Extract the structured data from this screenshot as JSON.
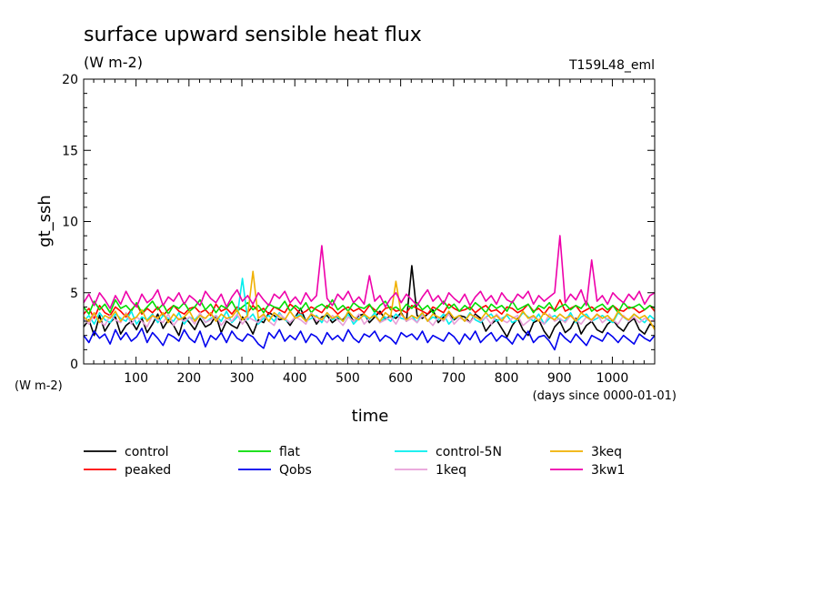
{
  "chart_data": {
    "type": "line",
    "title": "surface upward sensible heat flux",
    "units": "(W m-2)",
    "experiment": "T159L48_eml",
    "ylabel": "gt_ssh",
    "xlabel": "time",
    "x_units": "(days since 0000-01-01)",
    "ylim": [
      0,
      20
    ],
    "xlim": [
      1,
      1080
    ],
    "x_ticks": [
      100,
      200,
      300,
      400,
      500,
      600,
      700,
      800,
      900,
      1000
    ],
    "y_ticks": [
      0,
      5,
      10,
      15,
      20
    ],
    "grid": false,
    "legend_position": "below",
    "sampling": "values given every 10 days starting at day 1",
    "series": [
      {
        "name": "control",
        "color": "#000000",
        "values": [
          2.6,
          3.1,
          2.0,
          3.4,
          2.3,
          2.9,
          3.3,
          2.1,
          2.7,
          3.0,
          2.4,
          3.2,
          2.2,
          2.8,
          3.5,
          2.5,
          3.1,
          2.7,
          2.0,
          3.3,
          2.9,
          2.4,
          3.2,
          2.6,
          2.8,
          3.4,
          2.2,
          3.0,
          2.7,
          2.5,
          3.3,
          2.8,
          2.1,
          3.1,
          2.9,
          3.6,
          3.4,
          3.1,
          3.2,
          2.7,
          3.3,
          3.9,
          3.0,
          3.5,
          2.8,
          3.3,
          3.4,
          2.9,
          3.2,
          3.1,
          3.6,
          3.0,
          3.4,
          3.5,
          2.9,
          3.3,
          3.7,
          3.1,
          3.4,
          3.2,
          3.6,
          3.0,
          6.9,
          3.4,
          3.2,
          3.5,
          3.8,
          2.9,
          3.3,
          3.6,
          3.1,
          3.4,
          3.3,
          2.9,
          3.5,
          3.2,
          2.3,
          2.8,
          3.1,
          2.5,
          1.9,
          2.7,
          3.2,
          2.4,
          2.0,
          2.9,
          3.1,
          2.3,
          1.8,
          2.6,
          3.0,
          2.2,
          2.5,
          3.2,
          2.1,
          2.7,
          3.0,
          2.4,
          2.2,
          2.8,
          3.1,
          2.6,
          2.3,
          2.9,
          3.2,
          2.4,
          2.1,
          2.8,
          2.6
        ]
      },
      {
        "name": "peaked",
        "color": "#ff0000",
        "values": [
          3.5,
          3.9,
          3.2,
          4.1,
          3.6,
          3.4,
          4.0,
          3.7,
          3.3,
          3.8,
          4.2,
          3.5,
          3.9,
          3.6,
          4.0,
          3.4,
          3.8,
          4.1,
          3.7,
          3.5,
          3.9,
          4.0,
          3.6,
          3.8,
          3.4,
          4.2,
          3.7,
          3.9,
          3.5,
          4.0,
          3.8,
          3.6,
          4.1,
          3.7,
          3.9,
          3.5,
          4.0,
          3.8,
          3.6,
          4.2,
          3.9,
          3.5,
          3.7,
          4.0,
          3.8,
          3.6,
          4.1,
          3.9,
          3.5,
          3.8,
          4.0,
          3.7,
          3.9,
          3.6,
          4.1,
          3.8,
          3.5,
          3.9,
          4.0,
          3.7,
          3.8,
          3.6,
          4.1,
          3.9,
          3.7,
          3.5,
          4.0,
          3.8,
          3.6,
          4.2,
          3.9,
          3.7,
          3.8,
          4.0,
          3.6,
          3.9,
          4.1,
          3.7,
          3.8,
          3.5,
          4.0,
          3.9,
          3.6,
          3.8,
          4.2,
          3.7,
          3.9,
          3.5,
          4.0,
          3.8,
          4.5,
          3.7,
          3.9,
          4.1,
          3.6,
          3.8,
          4.0,
          3.7,
          3.9,
          3.6,
          4.1,
          3.8,
          3.7,
          4.0,
          3.9,
          3.6,
          3.8,
          4.1,
          3.7
        ]
      },
      {
        "name": "flat",
        "color": "#00dd00",
        "values": [
          4.0,
          3.5,
          4.4,
          3.8,
          4.2,
          3.6,
          4.5,
          3.9,
          4.1,
          3.7,
          4.3,
          3.6,
          4.0,
          4.4,
          3.8,
          4.2,
          3.5,
          4.1,
          3.9,
          4.3,
          3.7,
          4.0,
          4.5,
          3.8,
          4.2,
          3.6,
          4.1,
          3.9,
          4.4,
          3.7,
          4.0,
          4.3,
          3.8,
          4.1,
          3.6,
          4.2,
          4.0,
          3.9,
          4.4,
          3.7,
          4.1,
          3.8,
          4.3,
          3.6,
          4.0,
          4.2,
          3.9,
          4.5,
          3.8,
          4.1,
          3.7,
          4.3,
          4.0,
          3.9,
          4.2,
          3.6,
          4.1,
          4.4,
          3.8,
          4.0,
          3.7,
          4.2,
          3.9,
          4.3,
          3.8,
          4.1,
          3.6,
          4.0,
          4.4,
          3.9,
          4.2,
          3.7,
          4.1,
          3.8,
          4.3,
          4.0,
          3.6,
          4.2,
          3.9,
          4.1,
          3.7,
          4.4,
          3.8,
          4.0,
          4.2,
          3.6,
          4.1,
          3.9,
          4.3,
          3.7,
          4.0,
          4.2,
          3.8,
          4.1,
          3.9,
          4.4,
          3.7,
          4.0,
          4.2,
          3.8,
          4.1,
          3.6,
          4.3,
          3.9,
          4.0,
          4.2,
          3.8,
          4.1,
          3.9
        ]
      },
      {
        "name": "Qobs",
        "color": "#0000ee",
        "values": [
          2.0,
          1.5,
          2.3,
          1.8,
          2.1,
          1.4,
          2.4,
          1.7,
          2.2,
          1.6,
          1.9,
          2.5,
          1.5,
          2.2,
          1.8,
          1.3,
          2.1,
          1.9,
          1.6,
          2.4,
          1.8,
          1.5,
          2.3,
          1.2,
          2.0,
          1.7,
          2.2,
          1.5,
          2.3,
          1.8,
          1.6,
          2.1,
          1.9,
          1.4,
          1.1,
          2.2,
          1.8,
          2.4,
          1.6,
          2.0,
          1.7,
          2.3,
          1.5,
          2.1,
          1.9,
          1.4,
          2.2,
          1.7,
          2.0,
          1.6,
          2.4,
          1.8,
          1.5,
          2.1,
          1.9,
          2.3,
          1.6,
          2.0,
          1.8,
          1.4,
          2.2,
          1.9,
          2.1,
          1.7,
          2.3,
          1.5,
          2.0,
          1.8,
          1.6,
          2.2,
          1.9,
          1.4,
          2.1,
          1.7,
          2.3,
          1.5,
          1.9,
          2.2,
          1.6,
          2.0,
          1.8,
          1.4,
          2.1,
          1.7,
          2.3,
          1.5,
          1.9,
          2.0,
          1.6,
          1.0,
          2.2,
          1.8,
          1.5,
          2.1,
          1.7,
          1.3,
          2.0,
          1.8,
          1.6,
          2.2,
          1.9,
          1.5,
          2.0,
          1.7,
          1.4,
          2.1,
          1.8,
          1.6,
          2.0
        ]
      },
      {
        "name": "control-5N",
        "color": "#00eeee",
        "values": [
          3.0,
          3.4,
          2.8,
          3.6,
          3.1,
          2.9,
          3.5,
          3.2,
          3.0,
          3.7,
          2.8,
          3.3,
          3.1,
          3.5,
          2.9,
          3.4,
          3.2,
          3.0,
          3.6,
          2.8,
          3.3,
          3.1,
          3.5,
          2.9,
          3.2,
          3.4,
          3.0,
          3.7,
          2.9,
          3.3,
          6.0,
          3.1,
          3.5,
          2.8,
          3.2,
          3.4,
          3.0,
          3.6,
          3.1,
          2.9,
          3.3,
          3.5,
          3.0,
          3.2,
          3.4,
          2.9,
          3.6,
          3.1,
          3.3,
          3.0,
          3.5,
          2.8,
          3.2,
          3.4,
          3.1,
          3.6,
          2.9,
          3.3,
          3.0,
          3.5,
          3.2,
          3.1,
          3.4,
          2.9,
          3.6,
          3.0,
          3.3,
          3.1,
          3.5,
          2.8,
          3.2,
          3.4,
          3.0,
          3.6,
          3.1,
          2.9,
          3.3,
          3.5,
          3.0,
          3.2,
          3.4,
          2.9,
          3.1,
          3.6,
          3.3,
          3.0,
          3.5,
          2.8,
          3.2,
          3.4,
          3.1,
          3.0,
          3.6,
          2.9,
          3.3,
          3.5,
          3.0,
          3.2,
          3.4,
          3.1,
          2.9,
          3.6,
          3.3,
          3.0,
          3.5,
          3.2,
          2.9,
          3.4,
          3.1
        ]
      },
      {
        "name": "1keq",
        "color": "#e89fd8",
        "values": [
          3.2,
          2.8,
          3.5,
          3.0,
          2.7,
          3.4,
          3.1,
          2.9,
          3.6,
          2.8,
          3.3,
          3.0,
          2.6,
          3.4,
          3.1,
          2.9,
          3.5,
          2.7,
          3.2,
          3.0,
          3.3,
          2.8,
          3.6,
          2.9,
          3.1,
          3.4,
          2.7,
          3.2,
          3.0,
          3.5,
          2.8,
          3.3,
          3.1,
          2.9,
          3.4,
          3.0,
          2.7,
          3.5,
          3.2,
          2.9,
          3.3,
          3.1,
          2.8,
          3.6,
          3.0,
          3.2,
          2.9,
          3.4,
          3.1,
          2.7,
          3.3,
          3.0,
          3.5,
          2.8,
          3.2,
          3.4,
          2.9,
          3.1,
          3.3,
          2.8,
          3.5,
          3.0,
          3.2,
          2.9,
          3.4,
          3.1,
          2.7,
          3.3,
          3.0,
          3.5,
          2.8,
          3.2,
          3.1,
          2.9,
          3.4,
          3.0,
          3.3,
          2.8,
          3.5,
          3.1,
          2.9,
          3.2,
          3.4,
          2.7,
          3.0,
          3.3,
          3.1,
          2.8,
          3.5,
          3.0,
          3.2,
          2.9,
          3.4,
          3.1,
          2.8,
          3.3,
          3.0,
          3.5,
          2.9,
          3.2,
          3.1,
          2.8,
          3.4,
          3.0,
          3.3,
          2.9,
          3.2,
          3.0,
          3.1
        ]
      },
      {
        "name": "3keq",
        "color": "#f0b000",
        "values": [
          3.3,
          3.0,
          3.6,
          2.9,
          3.4,
          3.2,
          3.7,
          3.0,
          3.5,
          3.1,
          3.3,
          3.8,
          3.0,
          3.4,
          3.2,
          3.6,
          2.9,
          3.5,
          3.1,
          3.3,
          3.7,
          3.0,
          3.4,
          3.2,
          3.6,
          3.0,
          3.5,
          3.2,
          3.3,
          3.8,
          3.1,
          3.4,
          6.5,
          3.2,
          3.5,
          3.0,
          3.6,
          3.3,
          3.1,
          3.7,
          3.2,
          3.4,
          3.0,
          3.5,
          3.3,
          3.1,
          3.6,
          3.2,
          3.4,
          3.0,
          3.7,
          3.3,
          3.1,
          3.5,
          3.2,
          3.4,
          3.0,
          3.6,
          3.3,
          5.8,
          3.5,
          3.1,
          3.4,
          3.2,
          3.6,
          3.0,
          3.5,
          3.3,
          3.1,
          3.7,
          3.2,
          3.4,
          3.0,
          3.5,
          3.3,
          3.1,
          3.6,
          3.2,
          3.4,
          3.0,
          3.5,
          3.3,
          3.1,
          3.7,
          3.2,
          3.4,
          3.0,
          3.6,
          3.3,
          3.1,
          3.5,
          3.2,
          3.4,
          3.0,
          3.6,
          3.3,
          3.1,
          3.5,
          3.2,
          3.4,
          3.0,
          3.7,
          3.3,
          3.1,
          3.5,
          3.2,
          3.4,
          3.0,
          2.4
        ]
      },
      {
        "name": "3kw1",
        "color": "#ee00aa",
        "values": [
          4.3,
          4.9,
          4.1,
          5.0,
          4.5,
          3.9,
          4.8,
          4.2,
          5.1,
          4.4,
          4.0,
          4.9,
          4.3,
          4.6,
          5.2,
          4.1,
          4.7,
          4.4,
          5.0,
          4.2,
          4.8,
          4.5,
          4.1,
          5.1,
          4.6,
          4.3,
          4.9,
          4.0,
          4.7,
          5.2,
          4.4,
          4.8,
          4.2,
          5.0,
          4.5,
          4.1,
          4.9,
          4.6,
          5.1,
          4.3,
          4.7,
          4.2,
          5.0,
          4.4,
          4.8,
          8.3,
          4.6,
          4.1,
          4.9,
          4.5,
          5.1,
          4.3,
          4.7,
          4.2,
          6.2,
          4.4,
          4.8,
          4.0,
          4.6,
          5.0,
          4.3,
          4.9,
          4.5,
          4.1,
          4.7,
          5.2,
          4.4,
          4.8,
          4.2,
          5.0,
          4.6,
          4.3,
          4.9,
          4.1,
          4.7,
          5.1,
          4.4,
          4.8,
          4.2,
          5.0,
          4.5,
          4.3,
          4.9,
          4.6,
          5.1,
          4.2,
          4.8,
          4.4,
          4.7,
          5.0,
          9.0,
          4.3,
          4.9,
          4.5,
          5.2,
          4.1,
          7.3,
          4.4,
          4.8,
          4.2,
          5.0,
          4.6,
          4.3,
          4.9,
          4.5,
          5.1,
          4.2,
          4.8,
          5.0
        ]
      }
    ]
  }
}
